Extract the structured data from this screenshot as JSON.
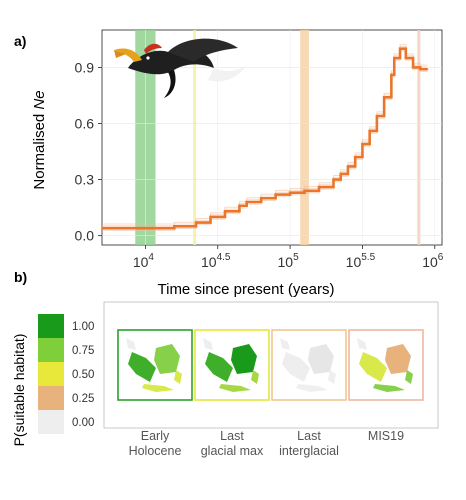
{
  "panel_a": {
    "label": "a)",
    "ylabel_prefix": "Normalised ",
    "ylabel_var": "Ne",
    "xlabel": "Time since present (years)",
    "yticks": [
      "0.0",
      "0.3",
      "0.6",
      "0.9"
    ],
    "xticks": [
      {
        "base": "10",
        "exp": "4",
        "value": 4.0
      },
      {
        "base": "10",
        "exp": "4.5",
        "value": 4.5
      },
      {
        "base": "10",
        "exp": "5",
        "value": 5.0
      },
      {
        "base": "10",
        "exp": "5.5",
        "value": 5.5
      },
      {
        "base": "10",
        "exp": "6",
        "value": 6.0
      }
    ]
  },
  "panel_b": {
    "label": "b)",
    "legend_title": "P(suitable habitat)",
    "legend": [
      {
        "label": "1.00",
        "color": "#1a9a1a"
      },
      {
        "label": "0.75",
        "color": "#7fcf3a"
      },
      {
        "label": "0.50",
        "color": "#e8e83a"
      },
      {
        "label": "0.25",
        "color": "#e8b27c"
      },
      {
        "label": "0.00",
        "color": "#eeeeee"
      }
    ],
    "maps": [
      {
        "label_lines": [
          "Early",
          "Holocene"
        ],
        "border": "#2ca02c"
      },
      {
        "label_lines": [
          "Last",
          "glacial max"
        ],
        "border": "#e6e63c"
      },
      {
        "label_lines": [
          "Last",
          "interglacial"
        ],
        "border": "#f0c890"
      },
      {
        "label_lines": [
          "MIS19"
        ],
        "border": "#f0b8a0"
      }
    ]
  },
  "chart_data": {
    "type": "line",
    "xscale": "log10",
    "xlim": [
      3.7,
      6.05
    ],
    "ylim": [
      -0.05,
      1.1
    ],
    "line_color": "#e9762b",
    "shaded_periods": [
      {
        "x": [
          3.93,
          4.07
        ],
        "color": "#8fd18f"
      },
      {
        "x": [
          4.33,
          4.35
        ],
        "color": "#f2f0a0"
      },
      {
        "x": [
          5.07,
          5.13
        ],
        "color": "#f6d2a6"
      },
      {
        "x": [
          5.88,
          5.9
        ],
        "color": "#f6cdb8"
      }
    ],
    "series": [
      {
        "log10_years": [
          3.7,
          4.1,
          4.2,
          4.35,
          4.45,
          4.55,
          4.65,
          4.7,
          4.8,
          4.9,
          5.0,
          5.1,
          5.2,
          5.3,
          5.35,
          5.4,
          5.45,
          5.5,
          5.55,
          5.6,
          5.65,
          5.7,
          5.72,
          5.76,
          5.8,
          5.85,
          5.9,
          5.95
        ],
        "normalised_ne": [
          0.04,
          0.04,
          0.05,
          0.07,
          0.1,
          0.13,
          0.16,
          0.18,
          0.2,
          0.22,
          0.23,
          0.24,
          0.26,
          0.3,
          0.33,
          0.37,
          0.42,
          0.49,
          0.56,
          0.64,
          0.74,
          0.86,
          0.95,
          1.0,
          0.95,
          0.9,
          0.89,
          0.89
        ]
      }
    ]
  }
}
